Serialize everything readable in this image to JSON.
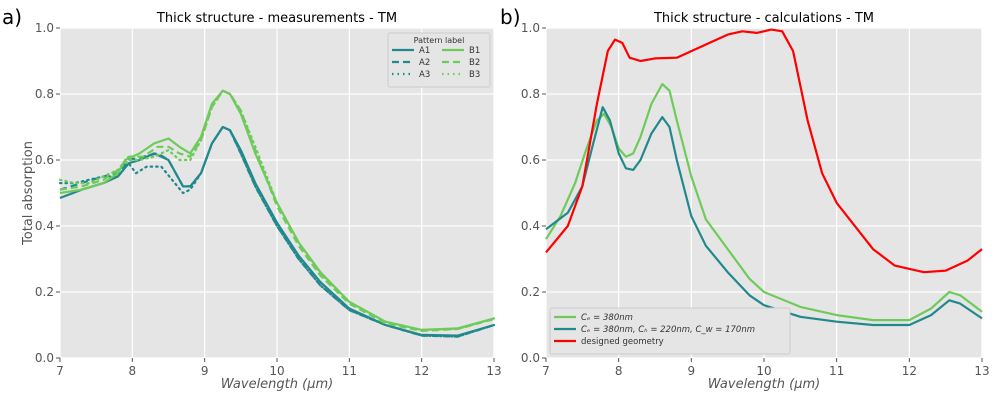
{
  "chart_data": [
    {
      "type": "line",
      "panel_label": "a)",
      "title": "Thick structure - measurements - TM",
      "xlabel": "Wavelength (μm)",
      "ylabel": "Total absorption",
      "xlim": [
        7,
        13
      ],
      "ylim": [
        0,
        1
      ],
      "xticks": [
        "7",
        "8",
        "9",
        "10",
        "11",
        "12",
        "13"
      ],
      "yticks": [
        "0.0",
        "0.2",
        "0.4",
        "0.6",
        "0.8",
        "1.0"
      ],
      "grid": true,
      "legend": {
        "title": "Pattern label",
        "placement": "top-right"
      },
      "series": [
        {
          "name": "A1",
          "color": "#21898c",
          "style": "solid",
          "points": [
            [
              7,
              0.485
            ],
            [
              7.3,
              0.51
            ],
            [
              7.6,
              0.53
            ],
            [
              7.8,
              0.55
            ],
            [
              7.95,
              0.59
            ],
            [
              8.1,
              0.6
            ],
            [
              8.3,
              0.62
            ],
            [
              8.5,
              0.6
            ],
            [
              8.7,
              0.52
            ],
            [
              8.8,
              0.52
            ],
            [
              8.95,
              0.56
            ],
            [
              9.1,
              0.65
            ],
            [
              9.25,
              0.7
            ],
            [
              9.35,
              0.69
            ],
            [
              9.5,
              0.63
            ],
            [
              9.7,
              0.53
            ],
            [
              10,
              0.41
            ],
            [
              10.3,
              0.31
            ],
            [
              10.6,
              0.23
            ],
            [
              11,
              0.15
            ],
            [
              11.5,
              0.1
            ],
            [
              12,
              0.07
            ],
            [
              12.5,
              0.068
            ],
            [
              13,
              0.1
            ]
          ]
        },
        {
          "name": "A2",
          "color": "#21898c",
          "style": "dashed",
          "points": [
            [
              7,
              0.51
            ],
            [
              7.3,
              0.53
            ],
            [
              7.6,
              0.55
            ],
            [
              7.8,
              0.56
            ],
            [
              7.95,
              0.6
            ],
            [
              8.15,
              0.61
            ],
            [
              8.35,
              0.62
            ],
            [
              8.5,
              0.6
            ],
            [
              8.7,
              0.52
            ],
            [
              8.8,
              0.52
            ],
            [
              8.95,
              0.56
            ],
            [
              9.1,
              0.65
            ],
            [
              9.25,
              0.7
            ],
            [
              9.35,
              0.69
            ],
            [
              9.5,
              0.62
            ],
            [
              9.7,
              0.52
            ],
            [
              10,
              0.4
            ],
            [
              10.3,
              0.3
            ],
            [
              10.6,
              0.22
            ],
            [
              11,
              0.145
            ],
            [
              11.5,
              0.1
            ],
            [
              12,
              0.068
            ],
            [
              12.5,
              0.065
            ],
            [
              13,
              0.1
            ]
          ]
        },
        {
          "name": "A3",
          "color": "#21898c",
          "style": "dotted",
          "points": [
            [
              7,
              0.53
            ],
            [
              7.2,
              0.53
            ],
            [
              7.4,
              0.54
            ],
            [
              7.6,
              0.55
            ],
            [
              7.8,
              0.55
            ],
            [
              7.95,
              0.59
            ],
            [
              8.05,
              0.56
            ],
            [
              8.2,
              0.58
            ],
            [
              8.4,
              0.58
            ],
            [
              8.55,
              0.54
            ],
            [
              8.7,
              0.5
            ],
            [
              8.8,
              0.51
            ],
            [
              8.95,
              0.56
            ],
            [
              9.1,
              0.65
            ],
            [
              9.25,
              0.7
            ],
            [
              9.35,
              0.69
            ],
            [
              9.5,
              0.62
            ],
            [
              9.7,
              0.52
            ],
            [
              10,
              0.4
            ],
            [
              10.3,
              0.3
            ],
            [
              10.6,
              0.22
            ],
            [
              11,
              0.145
            ],
            [
              11.5,
              0.1
            ],
            [
              12,
              0.068
            ],
            [
              12.5,
              0.065
            ],
            [
              13,
              0.1
            ]
          ]
        },
        {
          "name": "B1",
          "color": "#6ecb5b",
          "style": "solid",
          "points": [
            [
              7,
              0.5
            ],
            [
              7.3,
              0.51
            ],
            [
              7.6,
              0.53
            ],
            [
              7.8,
              0.56
            ],
            [
              7.9,
              0.6
            ],
            [
              8.1,
              0.62
            ],
            [
              8.3,
              0.65
            ],
            [
              8.5,
              0.665
            ],
            [
              8.65,
              0.64
            ],
            [
              8.8,
              0.62
            ],
            [
              8.95,
              0.67
            ],
            [
              9.1,
              0.77
            ],
            [
              9.25,
              0.81
            ],
            [
              9.35,
              0.8
            ],
            [
              9.5,
              0.74
            ],
            [
              9.7,
              0.62
            ],
            [
              10,
              0.47
            ],
            [
              10.3,
              0.35
            ],
            [
              10.6,
              0.26
            ],
            [
              11,
              0.17
            ],
            [
              11.5,
              0.11
            ],
            [
              12,
              0.085
            ],
            [
              12.5,
              0.09
            ],
            [
              13,
              0.12
            ]
          ]
        },
        {
          "name": "B2",
          "color": "#6ecb5b",
          "style": "dashed",
          "points": [
            [
              7,
              0.51
            ],
            [
              7.3,
              0.52
            ],
            [
              7.6,
              0.54
            ],
            [
              7.8,
              0.57
            ],
            [
              7.95,
              0.61
            ],
            [
              8.15,
              0.61
            ],
            [
              8.35,
              0.64
            ],
            [
              8.5,
              0.64
            ],
            [
              8.65,
              0.62
            ],
            [
              8.8,
              0.61
            ],
            [
              8.95,
              0.66
            ],
            [
              9.1,
              0.76
            ],
            [
              9.25,
              0.81
            ],
            [
              9.35,
              0.8
            ],
            [
              9.5,
              0.75
            ],
            [
              9.7,
              0.63
            ],
            [
              10,
              0.46
            ],
            [
              10.3,
              0.34
            ],
            [
              10.6,
              0.25
            ],
            [
              11,
              0.165
            ],
            [
              11.5,
              0.105
            ],
            [
              12,
              0.082
            ],
            [
              12.5,
              0.088
            ],
            [
              13,
              0.118
            ]
          ]
        },
        {
          "name": "B3",
          "color": "#6ecb5b",
          "style": "dotted",
          "points": [
            [
              7,
              0.54
            ],
            [
              7.2,
              0.53
            ],
            [
              7.4,
              0.53
            ],
            [
              7.6,
              0.55
            ],
            [
              7.8,
              0.57
            ],
            [
              7.95,
              0.6
            ],
            [
              8.1,
              0.6
            ],
            [
              8.3,
              0.61
            ],
            [
              8.5,
              0.63
            ],
            [
              8.65,
              0.6
            ],
            [
              8.8,
              0.6
            ],
            [
              8.95,
              0.66
            ],
            [
              9.1,
              0.76
            ],
            [
              9.25,
              0.81
            ],
            [
              9.35,
              0.8
            ],
            [
              9.5,
              0.75
            ],
            [
              9.7,
              0.64
            ],
            [
              10,
              0.47
            ],
            [
              10.3,
              0.35
            ],
            [
              10.6,
              0.255
            ],
            [
              11,
              0.17
            ],
            [
              11.5,
              0.11
            ],
            [
              12,
              0.085
            ],
            [
              12.5,
              0.088
            ],
            [
              13,
              0.12
            ]
          ]
        }
      ]
    },
    {
      "type": "line",
      "panel_label": "b)",
      "title": "Thick structure - calculations - TM",
      "xlabel": "Wavelength (μm)",
      "ylabel": "",
      "xlim": [
        7,
        13
      ],
      "ylim": [
        0,
        1
      ],
      "xticks": [
        "7",
        "8",
        "9",
        "10",
        "11",
        "12",
        "13"
      ],
      "yticks": [
        "0.0",
        "0.2",
        "0.4",
        "0.6",
        "0.8",
        "1.0"
      ],
      "grid": true,
      "legend": {
        "placement": "bottom-left"
      },
      "series": [
        {
          "name": "Cₑ = 380nm",
          "color": "#6ecb5b",
          "style": "solid",
          "points": [
            [
              7,
              0.36
            ],
            [
              7.2,
              0.43
            ],
            [
              7.4,
              0.53
            ],
            [
              7.55,
              0.63
            ],
            [
              7.7,
              0.72
            ],
            [
              7.8,
              0.74
            ],
            [
              7.9,
              0.7
            ],
            [
              8,
              0.635
            ],
            [
              8.1,
              0.61
            ],
            [
              8.2,
              0.62
            ],
            [
              8.3,
              0.67
            ],
            [
              8.45,
              0.77
            ],
            [
              8.6,
              0.83
            ],
            [
              8.7,
              0.81
            ],
            [
              8.8,
              0.72
            ],
            [
              9,
              0.55
            ],
            [
              9.2,
              0.42
            ],
            [
              9.5,
              0.33
            ],
            [
              9.8,
              0.24
            ],
            [
              10,
              0.2
            ],
            [
              10.5,
              0.155
            ],
            [
              11,
              0.13
            ],
            [
              11.5,
              0.115
            ],
            [
              12,
              0.115
            ],
            [
              12.3,
              0.15
            ],
            [
              12.55,
              0.2
            ],
            [
              12.7,
              0.19
            ],
            [
              13,
              0.14
            ]
          ]
        },
        {
          "name": "Cₑ = 380nm, Cₕ = 220nm, C_w = 170nm",
          "color": "#21898c",
          "style": "solid",
          "points": [
            [
              7,
              0.39
            ],
            [
              7.3,
              0.44
            ],
            [
              7.5,
              0.52
            ],
            [
              7.65,
              0.65
            ],
            [
              7.78,
              0.76
            ],
            [
              7.88,
              0.72
            ],
            [
              8,
              0.62
            ],
            [
              8.1,
              0.575
            ],
            [
              8.2,
              0.57
            ],
            [
              8.3,
              0.6
            ],
            [
              8.45,
              0.68
            ],
            [
              8.6,
              0.73
            ],
            [
              8.7,
              0.7
            ],
            [
              8.8,
              0.6
            ],
            [
              9,
              0.43
            ],
            [
              9.2,
              0.34
            ],
            [
              9.5,
              0.26
            ],
            [
              9.8,
              0.19
            ],
            [
              10,
              0.16
            ],
            [
              10.5,
              0.125
            ],
            [
              11,
              0.11
            ],
            [
              11.5,
              0.1
            ],
            [
              12,
              0.1
            ],
            [
              12.3,
              0.13
            ],
            [
              12.55,
              0.175
            ],
            [
              12.7,
              0.165
            ],
            [
              13,
              0.12
            ]
          ]
        },
        {
          "name": "designed geometry",
          "color": "#ff0000",
          "style": "solid",
          "points": [
            [
              7,
              0.32
            ],
            [
              7.3,
              0.4
            ],
            [
              7.5,
              0.52
            ],
            [
              7.7,
              0.77
            ],
            [
              7.85,
              0.93
            ],
            [
              7.95,
              0.965
            ],
            [
              8.05,
              0.955
            ],
            [
              8.15,
              0.91
            ],
            [
              8.3,
              0.9
            ],
            [
              8.5,
              0.908
            ],
            [
              8.8,
              0.91
            ],
            [
              9.2,
              0.95
            ],
            [
              9.5,
              0.98
            ],
            [
              9.7,
              0.99
            ],
            [
              9.9,
              0.985
            ],
            [
              10.1,
              0.995
            ],
            [
              10.25,
              0.99
            ],
            [
              10.4,
              0.93
            ],
            [
              10.6,
              0.72
            ],
            [
              10.8,
              0.56
            ],
            [
              11,
              0.47
            ],
            [
              11.5,
              0.33
            ],
            [
              11.8,
              0.28
            ],
            [
              12.2,
              0.26
            ],
            [
              12.5,
              0.265
            ],
            [
              12.8,
              0.295
            ],
            [
              13,
              0.33
            ]
          ]
        }
      ]
    }
  ]
}
